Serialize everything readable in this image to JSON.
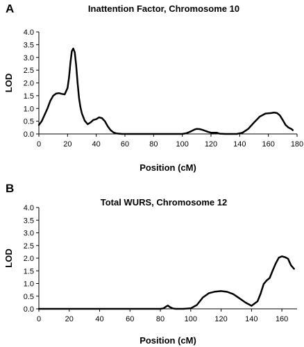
{
  "chart_data": [
    {
      "panel": "A",
      "type": "line",
      "title": "Inattention Factor, Chromosome 10",
      "xlabel": "Position (cM)",
      "ylabel": "LOD",
      "xlim": [
        0,
        180
      ],
      "ylim": [
        0,
        4.0
      ],
      "x_ticks": [
        0,
        20,
        40,
        60,
        80,
        100,
        120,
        140,
        160,
        180
      ],
      "y_ticks": [
        0.0,
        0.5,
        1.0,
        1.5,
        2.0,
        2.5,
        3.0,
        3.5,
        4.0
      ],
      "grid": false,
      "legend": "none",
      "series": [
        {
          "x": [
            0,
            2,
            4,
            6,
            8,
            10,
            12,
            14,
            16,
            18,
            20,
            21,
            22,
            23,
            24,
            25,
            26,
            27,
            28,
            29,
            30,
            32,
            34,
            36,
            38,
            40,
            42,
            44,
            46,
            48,
            50,
            52,
            54,
            56,
            58,
            60,
            70,
            80,
            90,
            100,
            103,
            106,
            108,
            110,
            112,
            114,
            116,
            118,
            120,
            124,
            126,
            130,
            135,
            138,
            142,
            146,
            150,
            154,
            158,
            162,
            164,
            166,
            168,
            170,
            172,
            174,
            176,
            177
          ],
          "y": [
            0.35,
            0.5,
            0.75,
            1.0,
            1.3,
            1.5,
            1.58,
            1.6,
            1.57,
            1.55,
            1.8,
            2.2,
            2.8,
            3.25,
            3.35,
            3.2,
            2.7,
            2.0,
            1.4,
            1.05,
            0.8,
            0.52,
            0.38,
            0.45,
            0.55,
            0.58,
            0.65,
            0.62,
            0.5,
            0.3,
            0.15,
            0.06,
            0.02,
            0.01,
            0.0,
            0.0,
            0.0,
            0.0,
            0.0,
            0.0,
            0.03,
            0.1,
            0.16,
            0.2,
            0.19,
            0.16,
            0.12,
            0.08,
            0.05,
            0.05,
            0.01,
            0.0,
            0.0,
            0.0,
            0.05,
            0.2,
            0.45,
            0.68,
            0.8,
            0.82,
            0.84,
            0.82,
            0.73,
            0.55,
            0.35,
            0.25,
            0.2,
            0.15
          ]
        }
      ]
    },
    {
      "panel": "B",
      "type": "line",
      "title": "Total WURS, Chromosome 12",
      "xlabel": "Position (cM)",
      "ylabel": "LOD",
      "xlim": [
        0,
        170
      ],
      "ylim": [
        0,
        4.0
      ],
      "x_ticks": [
        0,
        20,
        40,
        60,
        80,
        100,
        120,
        140,
        160
      ],
      "y_ticks": [
        0.0,
        0.5,
        1.0,
        1.5,
        2.0,
        2.5,
        3.0,
        3.5,
        4.0
      ],
      "grid": false,
      "legend": "none",
      "series": [
        {
          "x": [
            0,
            20,
            40,
            60,
            80,
            82,
            84,
            85,
            86,
            88,
            90,
            95,
            100,
            104,
            108,
            112,
            116,
            120,
            124,
            128,
            132,
            136,
            140,
            144,
            146,
            148,
            150,
            152,
            154,
            156,
            158,
            160,
            162,
            164,
            166,
            168
          ],
          "y": [
            0.0,
            0.0,
            0.0,
            0.0,
            0.0,
            0.02,
            0.1,
            0.13,
            0.08,
            0.02,
            0.0,
            0.0,
            0.02,
            0.15,
            0.45,
            0.62,
            0.68,
            0.7,
            0.67,
            0.58,
            0.42,
            0.25,
            0.12,
            0.3,
            0.6,
            0.98,
            1.12,
            1.22,
            1.52,
            1.8,
            2.02,
            2.07,
            2.04,
            1.98,
            1.72,
            1.58
          ]
        }
      ]
    }
  ]
}
